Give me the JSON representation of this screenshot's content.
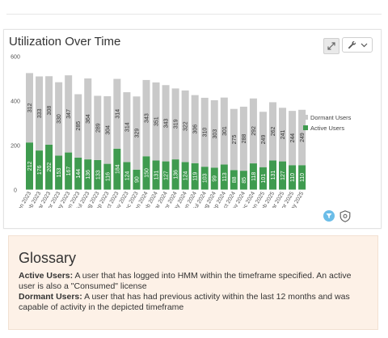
{
  "chart_card": {
    "title": "Utilization Over Time",
    "expand_icon": "expand-icon",
    "tools_icon": "wrench-icon",
    "menu_icon": "chevron-down-icon",
    "filter_icon": "filter-icon",
    "settings_icon": "shield-gear-icon"
  },
  "chart_data": {
    "type": "bar",
    "stacked": true,
    "title": "Utilization Over Time",
    "xlabel": "",
    "ylabel": "",
    "ylim": [
      0,
      600
    ],
    "yticks": [
      0,
      200,
      400,
      600
    ],
    "grid": false,
    "legend_placement": "right",
    "categories": [
      "Jan 2023",
      "Feb 2023",
      "Mar 2023",
      "Apr 2023",
      "May 2023",
      "Jun 2023",
      "Jul 2023",
      "Aug 2023",
      "Sep 2023",
      "Oct 2023",
      "Nov 2023",
      "Dec 2023",
      "Jan 2024",
      "Feb 2024",
      "Mar 2024",
      "Apr 2024",
      "May 2024",
      "Jun 2024",
      "Jul 2024",
      "Aug 2024",
      "Sep 2024",
      "Oct 2024",
      "Nov 2024",
      "Dec 2024",
      "Jan 2025",
      "Feb 2025",
      "Mar 2025",
      "Apr 2025",
      "May 2025"
    ],
    "series": [
      {
        "name": "Active Users",
        "color": "#3f9b4f",
        "values": [
          212,
          176,
          202,
          153,
          167,
          144,
          136,
          133,
          116,
          184,
          124,
          90,
          150,
          131,
          127,
          136,
          124,
          119,
          103,
          99,
          113,
          88,
          85,
          118,
          101,
          131,
          127,
          110,
          110
        ]
      },
      {
        "name": "Dormant Users",
        "color": "#c9c9c9",
        "values": [
          312,
          333,
          308,
          330,
          347,
          285,
          364,
          289,
          304,
          314,
          314,
          329,
          343,
          351,
          343,
          319,
          322,
          306,
          310,
          303,
          301,
          275,
          288,
          292,
          249,
          262,
          241,
          244,
          249
        ]
      }
    ],
    "legend_order": [
      "Dormant Users",
      "Active Users"
    ]
  },
  "glossary": {
    "title": "Glossary",
    "active_term": "Active Users:",
    "active_def": " A user that has logged into HMM within the timeframe specified. An active user is also a \"Consumed\" license",
    "dormant_term": "Dormant Users:",
    "dormant_def": " A user that has had previous activity within the last 12 months and was capable of activity in the depicted timeframe"
  }
}
